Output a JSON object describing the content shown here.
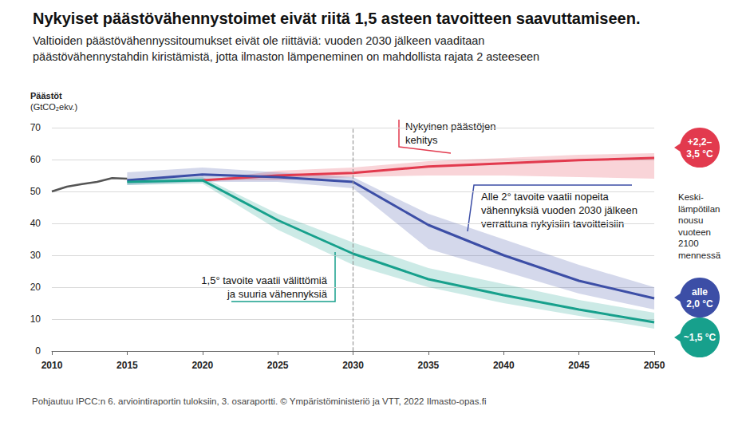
{
  "chart_data": {
    "type": "line",
    "title": "Nykyiset päästövähennystoimet eivät riitä 1,5 asteen tavoitteen saavuttamiseen.",
    "subtitle": "Valtioiden päästövähennyssitoumukset eivät ole riittäviä: vuoden 2030 jälkeen vaaditaan\npäästövähennystahdin kiristämistä, jotta ilmaston lämpeneminen on mahdollista rajata 2 asteeseen",
    "y_label": "Päästöt\n(GtCO₂ekv.)",
    "xlim": [
      2010,
      2050
    ],
    "xticks": [
      2010,
      2015,
      2020,
      2025,
      2030,
      2035,
      2040,
      2045,
      2050
    ],
    "ylim": [
      0,
      70
    ],
    "yticks": [
      0,
      10,
      20,
      30,
      40,
      50,
      60,
      70
    ],
    "grid": true,
    "vline": {
      "x": 2030,
      "line_style": "dashed"
    },
    "series": [
      {
        "color": "#555555",
        "line_style": "solid",
        "x": [
          2010,
          2011,
          2012,
          2013,
          2014,
          2015
        ],
        "values": [
          50,
          51.5,
          52.3,
          53,
          54.2,
          54
        ]
      },
      {
        "color": "#e23a4e",
        "line_style": "solid",
        "x": [
          2020,
          2025,
          2030,
          2035,
          2040,
          2045,
          2050
        ],
        "values": [
          53.5,
          55,
          55.8,
          57.8,
          58.8,
          59.8,
          60.5
        ],
        "lower": [
          53.5,
          53.5,
          54.5,
          55,
          55,
          54.5,
          54
        ],
        "upper": [
          53.5,
          56.5,
          57.5,
          59.5,
          60.5,
          61.5,
          62
        ],
        "annotation": "Nykyinen päästöjen\nkehitys",
        "end_label": "+2,2–\n3,5 °C"
      },
      {
        "color": "#3c4ea6",
        "line_style": "solid",
        "x": [
          2015,
          2020,
          2025,
          2030,
          2035,
          2040,
          2045,
          2050
        ],
        "values": [
          53.5,
          55.3,
          54.5,
          53,
          39.5,
          30,
          22,
          16.5
        ],
        "lower": [
          52,
          53,
          53,
          51,
          32,
          25,
          18,
          13
        ],
        "upper": [
          56,
          57.5,
          56,
          54.5,
          43,
          35,
          27,
          20
        ],
        "annotation": "Alle 2° tavoite vaatii nopeita\nvähennyksiä vuoden 2030 jälkeen\nverrattuna nykyisiin tavoitteisiin",
        "end_label": "alle\n2,0 °C"
      },
      {
        "color": "#17a08c",
        "line_style": "solid",
        "x": [
          2015,
          2020,
          2025,
          2030,
          2035,
          2040,
          2045,
          2050
        ],
        "values": [
          53,
          53.5,
          41,
          30.5,
          22.5,
          17.5,
          13,
          9
        ],
        "lower": [
          52,
          52.5,
          38,
          27,
          20,
          15,
          11,
          7
        ],
        "upper": [
          54,
          54.5,
          43,
          34,
          26,
          21,
          16,
          12
        ],
        "annotation": "1,5° tavoite vaatii välittömiä\nja suuria vähennyksiä",
        "end_label": "~1,5 °C"
      }
    ],
    "side_note": "Keski-\nlämpötilan\nnousu\nvuoteen\n2100\nmennessä",
    "source": "Pohjautuu IPCC:n 6. arviointiraportin tuloksiin, 3. osaraportti. © Ympäristöministeriö ja VTT, 2022 Ilmasto-opas.fi"
  }
}
